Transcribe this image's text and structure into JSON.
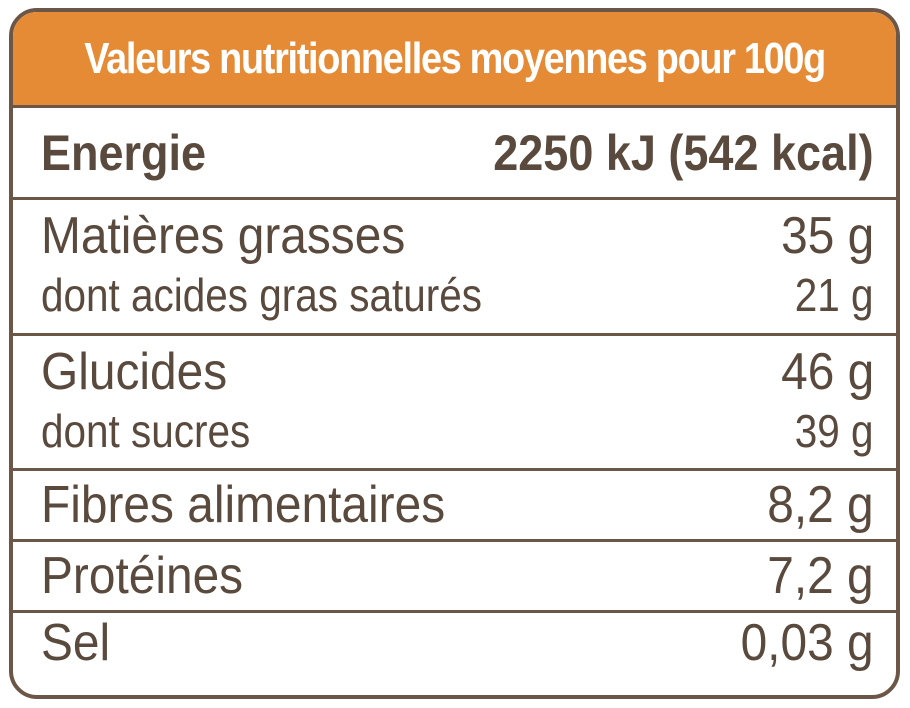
{
  "title": "Valeurs nutritionnelles moyennes pour 100g",
  "rows": {
    "energy": {
      "label": "Energie",
      "value": "2250 kJ (542 kcal)"
    },
    "fat": {
      "label": "Matières grasses",
      "value": "35 g"
    },
    "saturated": {
      "label": "dont acides gras saturés",
      "value": "21 g"
    },
    "carbs": {
      "label": "Glucides",
      "value": "46 g"
    },
    "sugars": {
      "label": "dont sucres",
      "value": "39 g"
    },
    "fibre": {
      "label": "Fibres alimentaires",
      "value": "8,2 g"
    },
    "protein": {
      "label": "Protéines",
      "value": "7,2 g"
    },
    "salt": {
      "label": "Sel",
      "value": "0,03 g"
    }
  },
  "colors": {
    "header_background": "#e58b35",
    "border": "#6b5647",
    "text": "#5a4a3e",
    "header_text": "#ffffff"
  }
}
